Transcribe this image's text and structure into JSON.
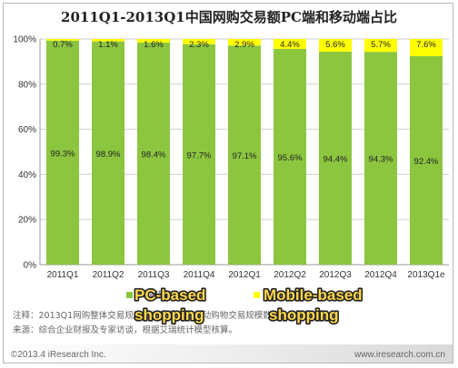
{
  "chart_data": {
    "type": "bar",
    "stacked": true,
    "title": "2011Q1-2013Q1中国网购交易额PC端和移动端占比",
    "categories": [
      "2011Q1",
      "2011Q2",
      "2011Q3",
      "2011Q4",
      "2012Q1",
      "2012Q2",
      "2012Q3",
      "2012Q4",
      "2013Q1e"
    ],
    "series": [
      {
        "name": "PC端网购",
        "color": "#8cc63f",
        "values": [
          99.3,
          98.9,
          98.4,
          97.7,
          97.1,
          95.6,
          94.4,
          94.3,
          92.4
        ],
        "labels": [
          "99.3%",
          "98.9%",
          "98.4%",
          "97.7%",
          "97.1%",
          "95.6%",
          "94.4%",
          "94.3%",
          "92.4%"
        ]
      },
      {
        "name": "移动端网购",
        "color": "#ffff00",
        "values": [
          0.7,
          1.1,
          1.6,
          2.3,
          2.9,
          4.4,
          5.6,
          5.7,
          7.6
        ],
        "labels": [
          "0.7%",
          "1.1%",
          "1.6%",
          "2.3%",
          "2.9%",
          "4.4%",
          "5.6%",
          "5.7%",
          "7.6%"
        ]
      }
    ],
    "ylim": [
      0,
      100
    ],
    "yticks": [
      "0%",
      "20%",
      "40%",
      "60%",
      "80%",
      "100%"
    ],
    "grid": true,
    "legend": "bottom",
    "overlay_labels": [
      "PC-based shopping",
      "Mobile-based shopping"
    ]
  },
  "notes": {
    "line1": "注释：2013Q1网购整体交易规模为估计数据，移动购物交易规模数据为估算值。",
    "line2": "来源：综合企业财报及专家访谈，根据艾瑞统计模型核算。"
  },
  "footer": {
    "copyright": "©2013.4 iResearch Inc.",
    "url": "www.iresearch.com.cn"
  }
}
